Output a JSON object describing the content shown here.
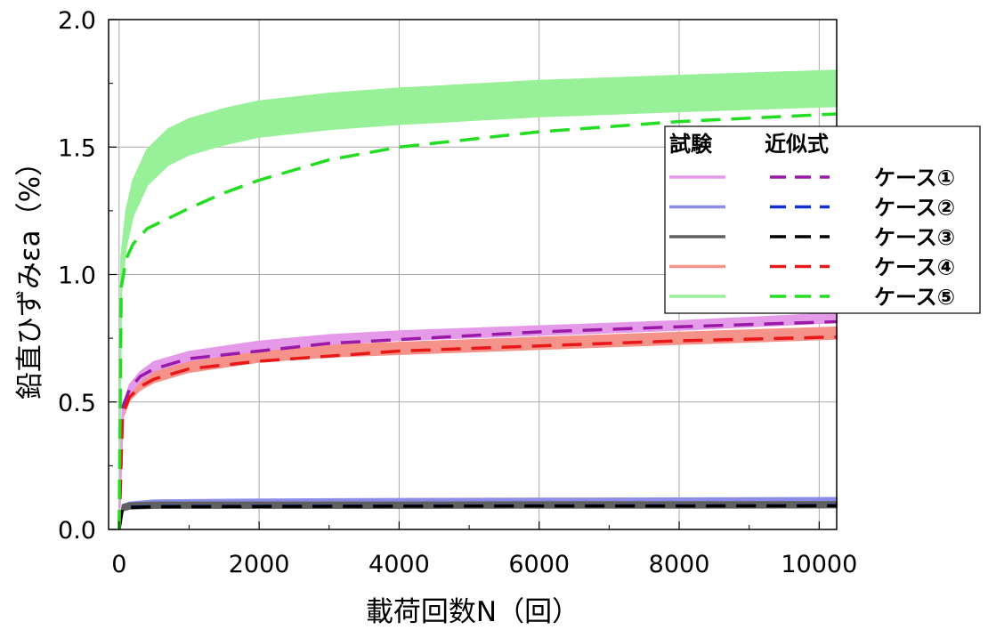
{
  "chart_data": {
    "type": "line",
    "xlabel": "載荷回数N（回）",
    "ylabel": "鉛直ひずみεa（%）",
    "xlim": [
      -150,
      10250
    ],
    "ylim": [
      0,
      2.0
    ],
    "xticks": [
      0,
      2000,
      4000,
      6000,
      8000,
      10000
    ],
    "xtick_labels": [
      "0",
      "2000",
      "4000",
      "6000",
      "8000",
      "10000"
    ],
    "yticks": [
      0,
      0.5,
      1.0,
      1.5,
      2.0
    ],
    "ytick_labels": [
      "0.0",
      "0.5",
      "1.0",
      "1.5",
      "2.0"
    ],
    "grid": true,
    "legend": {
      "placement": "right",
      "header_test": "試験",
      "header_fit": "近似式",
      "entries": [
        "ケース①",
        "ケース②",
        "ケース③",
        "ケース④",
        "ケース⑤"
      ]
    },
    "series": [
      {
        "name": "ケース①",
        "kind": "試験",
        "color": "#e49ae8",
        "band": 0.035,
        "x": [
          0,
          50,
          150,
          300,
          500,
          1000,
          2000,
          3000,
          4000,
          6000,
          8000,
          10250
        ],
        "y": [
          0.0,
          0.46,
          0.55,
          0.6,
          0.64,
          0.68,
          0.72,
          0.745,
          0.76,
          0.78,
          0.8,
          0.83
        ]
      },
      {
        "name": "ケース②",
        "kind": "試験",
        "color": "#8c8ce8",
        "band": 0.012,
        "x": [
          0,
          50,
          150,
          500,
          2000,
          4000,
          6000,
          8000,
          10250
        ],
        "y": [
          0.0,
          0.09,
          0.1,
          0.108,
          0.112,
          0.114,
          0.115,
          0.116,
          0.118
        ]
      },
      {
        "name": "ケース③",
        "kind": "試験",
        "color": "#606060",
        "band": 0.022,
        "x": [
          0,
          50,
          150,
          500,
          2000,
          4000,
          6000,
          8000,
          10250
        ],
        "y": [
          0.0,
          0.085,
          0.092,
          0.095,
          0.095,
          0.095,
          0.096,
          0.096,
          0.097
        ]
      },
      {
        "name": "ケース④",
        "kind": "試験",
        "color": "#f5928a",
        "band": 0.045,
        "x": [
          0,
          50,
          150,
          300,
          500,
          1000,
          2000,
          3000,
          4000,
          6000,
          8000,
          10250
        ],
        "y": [
          0.0,
          0.46,
          0.53,
          0.57,
          0.6,
          0.64,
          0.68,
          0.7,
          0.71,
          0.73,
          0.75,
          0.77
        ]
      },
      {
        "name": "ケース⑤",
        "kind": "試験",
        "color": "#98f098",
        "band": 0.14,
        "x": [
          0,
          30,
          100,
          200,
          400,
          700,
          1000,
          1500,
          2000,
          3000,
          4000,
          6000,
          8000,
          10250
        ],
        "y": [
          0.0,
          1.0,
          1.18,
          1.3,
          1.42,
          1.5,
          1.54,
          1.58,
          1.61,
          1.64,
          1.66,
          1.69,
          1.71,
          1.73
        ]
      },
      {
        "name": "ケース①",
        "kind": "近似式",
        "color": "#9a1aa8",
        "x": [
          0,
          50,
          150,
          300,
          500,
          1000,
          2000,
          3000,
          4000,
          6000,
          8000,
          10250
        ],
        "y": [
          0.0,
          0.48,
          0.55,
          0.6,
          0.63,
          0.67,
          0.7,
          0.73,
          0.745,
          0.775,
          0.795,
          0.815
        ]
      },
      {
        "name": "ケース②",
        "kind": "近似式",
        "color": "#1030d8",
        "x": [
          0,
          50,
          150,
          500,
          2000,
          4000,
          6000,
          8000,
          10250
        ],
        "y": [
          0.0,
          0.085,
          0.088,
          0.09,
          0.091,
          0.092,
          0.093,
          0.093,
          0.094
        ]
      },
      {
        "name": "ケース③",
        "kind": "近似式",
        "color": "#000000",
        "x": [
          0,
          50,
          150,
          500,
          2000,
          4000,
          6000,
          8000,
          10250
        ],
        "y": [
          0.0,
          0.084,
          0.087,
          0.089,
          0.09,
          0.091,
          0.092,
          0.092,
          0.093
        ]
      },
      {
        "name": "ケース④",
        "kind": "近似式",
        "color": "#e81818",
        "x": [
          0,
          50,
          150,
          300,
          500,
          1000,
          2000,
          3000,
          4000,
          6000,
          8000,
          10250
        ],
        "y": [
          0.0,
          0.45,
          0.52,
          0.56,
          0.59,
          0.63,
          0.66,
          0.68,
          0.7,
          0.72,
          0.74,
          0.755
        ]
      },
      {
        "name": "ケース⑤",
        "kind": "近似式",
        "color": "#22dd22",
        "x": [
          0,
          30,
          100,
          200,
          400,
          700,
          1000,
          1500,
          2000,
          3000,
          4000,
          6000,
          8000,
          10250
        ],
        "y": [
          0.0,
          0.95,
          1.06,
          1.12,
          1.18,
          1.22,
          1.26,
          1.32,
          1.37,
          1.45,
          1.5,
          1.56,
          1.6,
          1.63
        ]
      }
    ]
  }
}
